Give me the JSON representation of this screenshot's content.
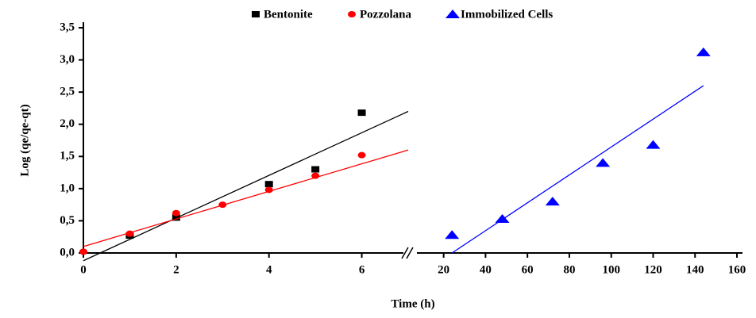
{
  "chart_data": {
    "type": "scatter",
    "y_label": "Log (qe/qe-qt)",
    "x_label": "Time (h)",
    "ylim": [
      0,
      3.5
    ],
    "yticks": [
      {
        "value": 0,
        "label": "0,0"
      },
      {
        "value": 0.5,
        "label": "0,5"
      },
      {
        "value": 1,
        "label": "1,0"
      },
      {
        "value": 1.5,
        "label": "1,5"
      },
      {
        "value": 2,
        "label": "2,0"
      },
      {
        "value": 2.5,
        "label": "2,5"
      },
      {
        "value": 3,
        "label": "3,0"
      },
      {
        "value": 3.5,
        "label": "3,5"
      }
    ],
    "xlim": [
      0,
      7
    ],
    "xticks": [
      0,
      2,
      4,
      6
    ],
    "x2lim": [
      8,
      160
    ],
    "x2ticks": [
      20,
      40,
      60,
      80,
      100,
      120,
      140,
      160
    ],
    "series": [
      {
        "name": "Bentonite",
        "color": "#000000",
        "marker": "square",
        "axis": "x",
        "x": [
          1,
          2,
          4,
          5,
          6
        ],
        "values": [
          0.27,
          0.55,
          1.07,
          1.3,
          2.18
        ],
        "fit": {
          "x": [
            0,
            7
          ],
          "values": [
            -0.12,
            2.2
          ]
        }
      },
      {
        "name": "Pozzolana",
        "color": "#ff0000",
        "marker": "circle",
        "axis": "x",
        "x": [
          0,
          1,
          2,
          3,
          4,
          5,
          6
        ],
        "values": [
          0.02,
          0.3,
          0.62,
          0.75,
          0.98,
          1.2,
          1.52
        ],
        "fit": {
          "x": [
            0,
            7
          ],
          "values": [
            0.1,
            1.6
          ]
        }
      },
      {
        "name": "Immobilized Cells",
        "color": "#0000ff",
        "marker": "triangle",
        "axis": "x2",
        "x": [
          24,
          48,
          72,
          96,
          120,
          144
        ],
        "values": [
          0.28,
          0.53,
          0.8,
          1.4,
          1.68,
          3.12
        ],
        "fit": {
          "x": [
            24,
            144
          ],
          "values": [
            0,
            2.6
          ]
        }
      }
    ]
  }
}
